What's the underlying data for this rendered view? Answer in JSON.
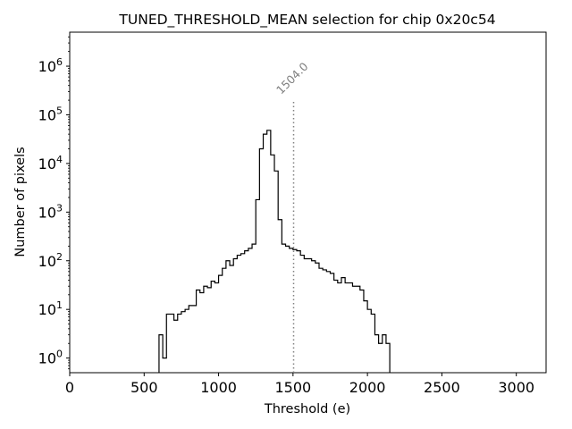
{
  "chart_data": {
    "type": "histogram",
    "title": "TUNED_THRESHOLD_MEAN selection for chip 0x20c54",
    "xlabel": "Threshold (e)",
    "ylabel": "Number of pixels",
    "xlim": [
      0,
      3200
    ],
    "ylim": [
      0.5,
      5000000
    ],
    "yscale": "log",
    "grid": false,
    "legend": "none",
    "x_ticks": [
      0,
      500,
      1000,
      1500,
      2000,
      2500,
      3000
    ],
    "x_tick_labels": [
      "0",
      "500",
      "1000",
      "1500",
      "2000",
      "2500",
      "3000"
    ],
    "y_ticks": [
      1,
      10,
      100,
      1000,
      10000,
      100000,
      1000000
    ],
    "y_tick_mantissa": "10",
    "y_tick_exponents": [
      "0",
      "1",
      "2",
      "3",
      "4",
      "5",
      "6"
    ],
    "bin_width": 25,
    "bins_start": 600,
    "bin_counts": [
      3,
      1,
      8,
      8,
      6,
      8,
      9,
      10,
      12,
      12,
      25,
      22,
      30,
      28,
      38,
      35,
      50,
      70,
      100,
      80,
      110,
      130,
      140,
      160,
      180,
      220,
      1800,
      20000,
      40000,
      48000,
      15000,
      7000,
      700,
      220,
      200,
      180,
      170,
      160,
      130,
      110,
      110,
      100,
      90,
      70,
      65,
      60,
      55,
      40,
      35,
      45,
      35,
      35,
      30,
      30,
      25,
      15,
      10,
      8,
      3,
      2,
      3,
      2
    ],
    "color": "#000000",
    "annotation": {
      "x": 1504.0,
      "y_top": 200000,
      "text": "1504.0",
      "color": "#808080",
      "style": "dotted"
    }
  }
}
